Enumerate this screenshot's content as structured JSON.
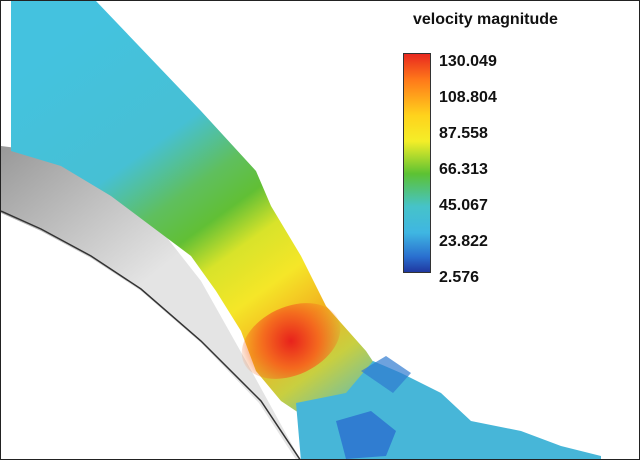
{
  "legend": {
    "title": "velocity magnitude",
    "ticks": [
      "130.049",
      "108.804",
      "87.558",
      "66.313",
      "45.067",
      "23.822",
      "2.576"
    ]
  },
  "colormap": [
    "#e8281f",
    "#ff7a1a",
    "#ffd21c",
    "#f4ee28",
    "#5cc233",
    "#46c3c9",
    "#3fb6e2",
    "#2a6fcf",
    "#2038a0"
  ]
}
